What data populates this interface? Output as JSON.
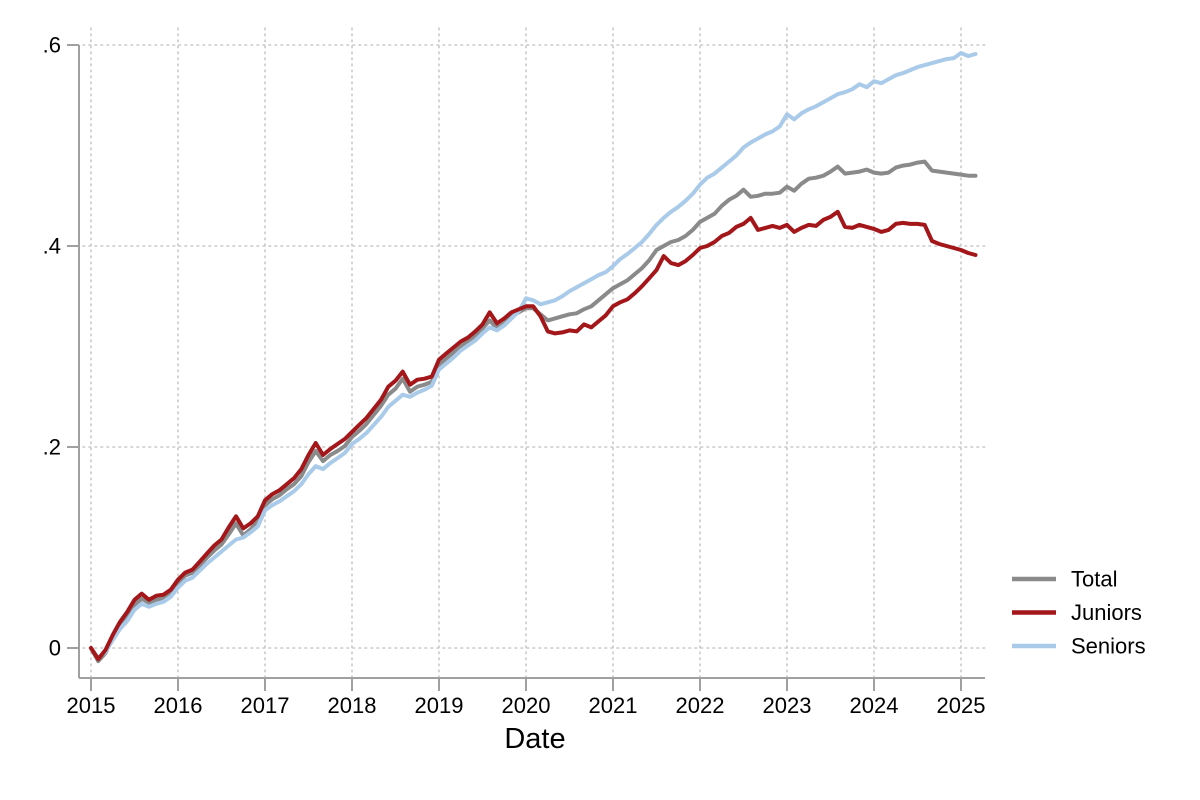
{
  "chart_data": {
    "type": "line",
    "title": "",
    "xlabel": "Date",
    "ylabel": "",
    "x_ticks": [
      "2015",
      "2016",
      "2017",
      "2018",
      "2019",
      "2020",
      "2021",
      "2022",
      "2023",
      "2024",
      "2025"
    ],
    "y_ticks": [
      {
        "v": 0.0,
        "label": "0"
      },
      {
        "v": 0.2,
        "label": ".2"
      },
      {
        "v": 0.4,
        "label": ".4"
      },
      {
        "v": 0.6,
        "label": ".6"
      }
    ],
    "xlim": [
      2014.93,
      2025.28
    ],
    "ylim": [
      -0.03,
      0.62
    ],
    "grid": "dotted",
    "x_start_year": 2015,
    "x_frequency": "monthly",
    "x_end": "2025-03",
    "legend_position": "bottom-right",
    "colors": {
      "axis": "#a0a0a0",
      "grid": "#c8c8c8",
      "text": "#000000",
      "background": "#ffffff"
    },
    "series": [
      {
        "name": "Total",
        "color": "#8a8a8a",
        "values": [
          0.0,
          -0.013,
          -0.005,
          0.01,
          0.022,
          0.03,
          0.043,
          0.049,
          0.045,
          0.048,
          0.05,
          0.055,
          0.065,
          0.072,
          0.075,
          0.082,
          0.09,
          0.097,
          0.103,
          0.113,
          0.124,
          0.112,
          0.118,
          0.126,
          0.142,
          0.148,
          0.152,
          0.158,
          0.163,
          0.171,
          0.185,
          0.196,
          0.186,
          0.192,
          0.196,
          0.201,
          0.21,
          0.216,
          0.223,
          0.232,
          0.241,
          0.252,
          0.258,
          0.268,
          0.255,
          0.26,
          0.262,
          0.265,
          0.282,
          0.288,
          0.294,
          0.3,
          0.305,
          0.311,
          0.318,
          0.326,
          0.318,
          0.323,
          0.33,
          0.334,
          0.338,
          0.338,
          0.332,
          0.326,
          0.328,
          0.33,
          0.332,
          0.333,
          0.337,
          0.34,
          0.346,
          0.352,
          0.358,
          0.362,
          0.366,
          0.372,
          0.378,
          0.386,
          0.396,
          0.4,
          0.404,
          0.406,
          0.41,
          0.416,
          0.424,
          0.428,
          0.432,
          0.44,
          0.446,
          0.45,
          0.456,
          0.449,
          0.45,
          0.452,
          0.452,
          0.453,
          0.459,
          0.455,
          0.462,
          0.467,
          0.468,
          0.47,
          0.474,
          0.479,
          0.472,
          0.473,
          0.474,
          0.476,
          0.473,
          0.472,
          0.473,
          0.478,
          0.48,
          0.481,
          0.483,
          0.484,
          0.475,
          0.474,
          0.473,
          0.472,
          0.471,
          0.47,
          0.47
        ]
      },
      {
        "name": "Juniors",
        "color": "#a3161a",
        "values": [
          0.0,
          -0.011,
          -0.002,
          0.013,
          0.026,
          0.036,
          0.048,
          0.054,
          0.048,
          0.052,
          0.053,
          0.058,
          0.068,
          0.075,
          0.078,
          0.086,
          0.094,
          0.102,
          0.108,
          0.12,
          0.131,
          0.119,
          0.124,
          0.131,
          0.147,
          0.153,
          0.157,
          0.163,
          0.169,
          0.178,
          0.192,
          0.204,
          0.192,
          0.198,
          0.203,
          0.208,
          0.215,
          0.222,
          0.229,
          0.238,
          0.247,
          0.26,
          0.266,
          0.275,
          0.262,
          0.267,
          0.268,
          0.27,
          0.287,
          0.293,
          0.299,
          0.305,
          0.309,
          0.315,
          0.322,
          0.334,
          0.323,
          0.328,
          0.334,
          0.337,
          0.34,
          0.34,
          0.33,
          0.315,
          0.313,
          0.314,
          0.316,
          0.315,
          0.322,
          0.319,
          0.325,
          0.331,
          0.34,
          0.344,
          0.347,
          0.353,
          0.36,
          0.368,
          0.376,
          0.39,
          0.383,
          0.381,
          0.385,
          0.391,
          0.398,
          0.4,
          0.404,
          0.41,
          0.413,
          0.419,
          0.422,
          0.428,
          0.416,
          0.418,
          0.42,
          0.418,
          0.421,
          0.414,
          0.418,
          0.421,
          0.42,
          0.426,
          0.429,
          0.434,
          0.419,
          0.418,
          0.421,
          0.419,
          0.417,
          0.414,
          0.416,
          0.422,
          0.423,
          0.422,
          0.422,
          0.421,
          0.405,
          0.402,
          0.4,
          0.398,
          0.396,
          0.393,
          0.391
        ]
      },
      {
        "name": "Seniors",
        "color": "#a9cbe9",
        "values": [
          0.0,
          -0.01,
          -0.004,
          0.008,
          0.019,
          0.027,
          0.038,
          0.044,
          0.041,
          0.044,
          0.046,
          0.051,
          0.06,
          0.067,
          0.07,
          0.077,
          0.084,
          0.09,
          0.096,
          0.102,
          0.108,
          0.11,
          0.115,
          0.121,
          0.137,
          0.142,
          0.146,
          0.151,
          0.156,
          0.163,
          0.173,
          0.181,
          0.178,
          0.184,
          0.189,
          0.194,
          0.203,
          0.208,
          0.214,
          0.222,
          0.23,
          0.24,
          0.246,
          0.252,
          0.25,
          0.254,
          0.257,
          0.261,
          0.277,
          0.283,
          0.289,
          0.296,
          0.301,
          0.306,
          0.313,
          0.319,
          0.316,
          0.321,
          0.328,
          0.335,
          0.348,
          0.346,
          0.342,
          0.344,
          0.346,
          0.35,
          0.355,
          0.359,
          0.363,
          0.367,
          0.371,
          0.374,
          0.38,
          0.387,
          0.392,
          0.398,
          0.404,
          0.412,
          0.421,
          0.428,
          0.434,
          0.439,
          0.445,
          0.452,
          0.461,
          0.468,
          0.472,
          0.478,
          0.484,
          0.49,
          0.498,
          0.503,
          0.507,
          0.511,
          0.514,
          0.519,
          0.531,
          0.526,
          0.532,
          0.536,
          0.539,
          0.543,
          0.547,
          0.551,
          0.553,
          0.556,
          0.561,
          0.558,
          0.564,
          0.562,
          0.566,
          0.57,
          0.572,
          0.575,
          0.578,
          0.58,
          0.582,
          0.584,
          0.586,
          0.587,
          0.592,
          0.589,
          0.591
        ]
      }
    ],
    "draw_order": [
      0,
      2,
      1
    ]
  }
}
